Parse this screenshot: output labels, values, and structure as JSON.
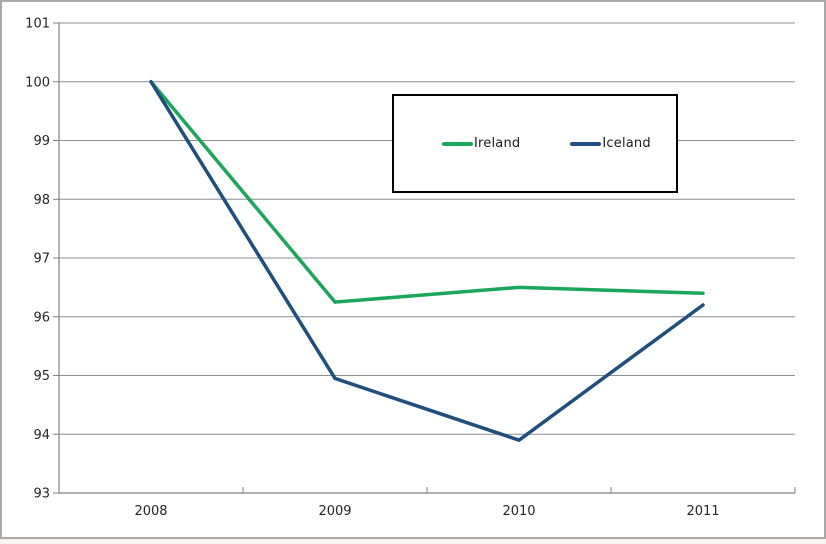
{
  "chart_data": {
    "type": "line",
    "categories": [
      "2008",
      "2009",
      "2010",
      "2011"
    ],
    "series": [
      {
        "name": "Ireland",
        "color": "#1aa65b",
        "values": [
          100,
          96.25,
          96.5,
          96.4
        ]
      },
      {
        "name": "Iceland",
        "color": "#204e7e",
        "values": [
          100,
          94.95,
          93.9,
          96.2
        ]
      }
    ],
    "title": "",
    "xlabel": "",
    "ylabel": "",
    "ylim": [
      93,
      101
    ],
    "yticks": [
      93,
      94,
      95,
      96,
      97,
      98,
      99,
      100,
      101
    ],
    "grid": true,
    "legend_position": "inside-top-center"
  },
  "styles": {
    "gridline_color": "#8e8e8e",
    "axis_color": "#808080",
    "tick_label_color": "#262626",
    "legend_border_color": "#000000",
    "legend_background": "#ffffff",
    "frame_border_color": "#a9a9a9",
    "page_strip_color": "#f6f4f1",
    "plot_background": "#ffffff"
  }
}
